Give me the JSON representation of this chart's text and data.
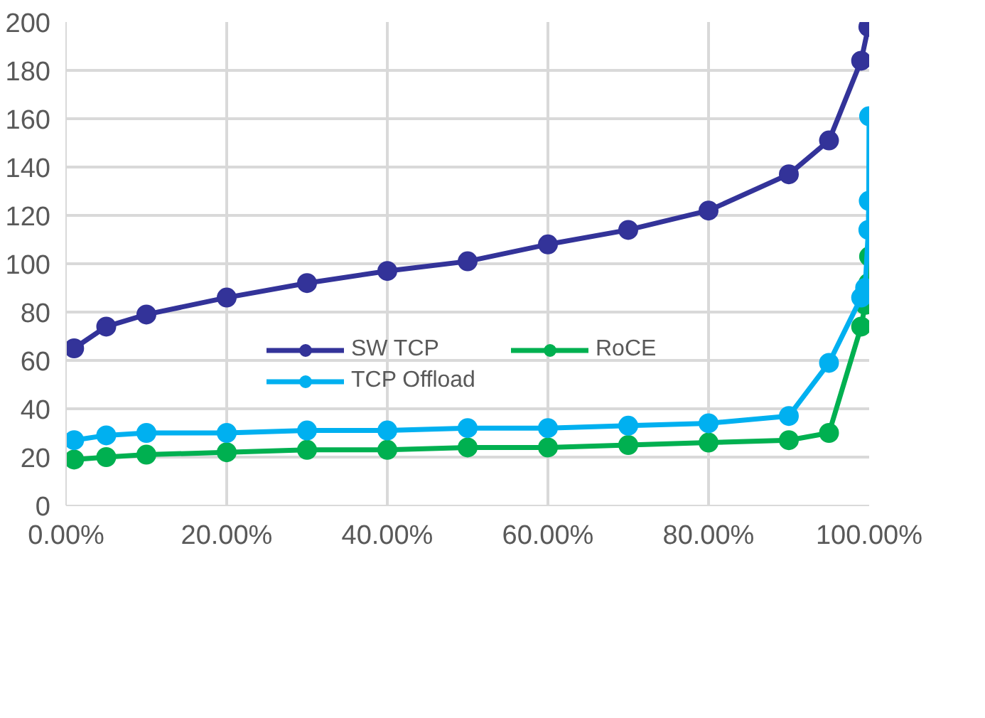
{
  "chart_data": {
    "type": "line",
    "xlim": [
      0,
      100
    ],
    "ylim": [
      0,
      200
    ],
    "xticks": [
      {
        "value": 0,
        "label": "0.00%"
      },
      {
        "value": 20,
        "label": "20.00%"
      },
      {
        "value": 40,
        "label": "40.00%"
      },
      {
        "value": 60,
        "label": "60.00%"
      },
      {
        "value": 80,
        "label": "80.00%"
      },
      {
        "value": 100,
        "label": "100.00%"
      }
    ],
    "yticks": [
      0,
      20,
      40,
      60,
      80,
      100,
      120,
      140,
      160,
      180,
      200
    ],
    "grid": true,
    "legend": "center",
    "marker": "circle",
    "line_style": "solid",
    "series": [
      {
        "name": "SW TCP",
        "color": "#333399",
        "x": [
          1,
          5,
          10,
          20,
          30,
          40,
          50,
          60,
          70,
          80,
          90,
          95,
          99,
          99.9
        ],
        "values": [
          65,
          74,
          79,
          86,
          92,
          97,
          101,
          108,
          114,
          122,
          137,
          151,
          184,
          198
        ]
      },
      {
        "name": "RoCE",
        "color": "#00b050",
        "x": [
          1,
          5,
          10,
          20,
          30,
          40,
          50,
          60,
          70,
          80,
          90,
          95,
          99,
          99.5,
          99.9,
          99.99
        ],
        "values": [
          19,
          20,
          21,
          22,
          23,
          23,
          24,
          24,
          25,
          26,
          27,
          30,
          74,
          83,
          92,
          103
        ]
      },
      {
        "name": "TCP Offload",
        "color": "#00b0f0",
        "x": [
          1,
          5,
          10,
          20,
          30,
          40,
          50,
          60,
          70,
          80,
          90,
          95,
          99,
          99.5,
          99.9,
          99.95,
          99.99
        ],
        "values": [
          27,
          29,
          30,
          30,
          31,
          31,
          32,
          32,
          33,
          34,
          37,
          59,
          86,
          90,
          114,
          126,
          161
        ]
      }
    ]
  }
}
